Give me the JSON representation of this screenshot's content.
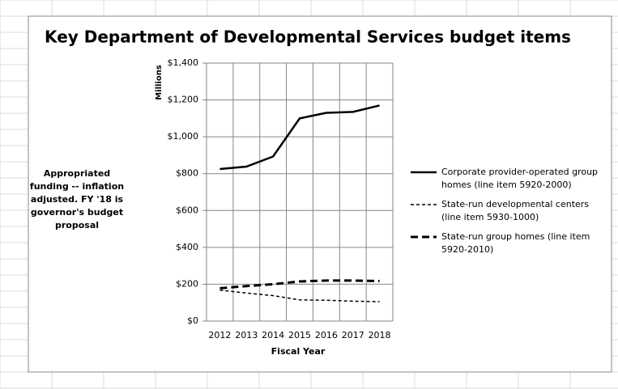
{
  "chart_data": {
    "type": "line",
    "title": "Key Department of Developmental Services budget items",
    "y_label": "Millions",
    "x_label": "Fiscal Year",
    "annotation": "Appropriated funding -- inflation adjusted. FY '18 is governor's budget proposal",
    "categories": [
      "2012",
      "2013",
      "2014",
      "2015",
      "2016",
      "2017",
      "2018"
    ],
    "series": [
      {
        "name": "Corporate provider-operated group homes (line item 5920-2000)",
        "color": "#000000",
        "line_style": "solid",
        "values": [
          825,
          838,
          893,
          1100,
          1130,
          1135,
          1170
        ]
      },
      {
        "name": "State-run developmental centers (line item 5930-1000)",
        "color": "#000000",
        "line_style": "short-dash",
        "values": [
          168,
          152,
          138,
          115,
          113,
          108,
          105
        ]
      },
      {
        "name": "State-run group homes (line item 5920-2010)",
        "color": "#000000",
        "line_style": "long-dash",
        "values": [
          178,
          190,
          200,
          215,
          220,
          220,
          217
        ]
      }
    ],
    "ylim": [
      0,
      1400
    ],
    "yticks": [
      {
        "value": 0,
        "label": "$0"
      },
      {
        "value": 200,
        "label": "$200"
      },
      {
        "value": 400,
        "label": "$400"
      },
      {
        "value": 600,
        "label": "$600"
      },
      {
        "value": 800,
        "label": "$800"
      },
      {
        "value": 1000,
        "label": "$1,000"
      },
      {
        "value": 1200,
        "label": "$1,200"
      },
      {
        "value": 1400,
        "label": "$1,400"
      }
    ],
    "grid": true
  }
}
